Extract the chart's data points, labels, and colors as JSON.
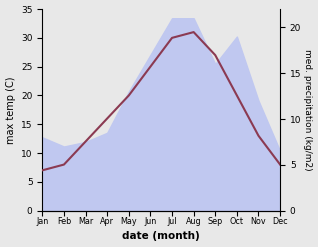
{
  "months": [
    "Jan",
    "Feb",
    "Mar",
    "Apr",
    "May",
    "Jun",
    "Jul",
    "Aug",
    "Sep",
    "Oct",
    "Nov",
    "Dec"
  ],
  "max_temp": [
    7,
    8,
    12,
    16,
    20,
    25,
    30,
    31,
    27,
    20,
    13,
    8
  ],
  "precipitation": [
    8,
    7,
    7.5,
    8.5,
    13,
    17,
    21,
    21,
    16,
    19,
    12,
    6.5
  ],
  "temp_ylim": [
    0,
    35
  ],
  "precip_ylim": [
    0,
    22
  ],
  "temp_color": "#8B3A52",
  "precip_fill_color": "#c0c8f0",
  "xlabel": "date (month)",
  "ylabel_left": "max temp (C)",
  "ylabel_right": "med. precipitation (kg/m2)",
  "temp_yticks": [
    0,
    5,
    10,
    15,
    20,
    25,
    30,
    35
  ],
  "precip_yticks": [
    0,
    5,
    10,
    15,
    20
  ],
  "fig_bg": "#e8e8e8",
  "plot_bg": "#e8e8e8"
}
